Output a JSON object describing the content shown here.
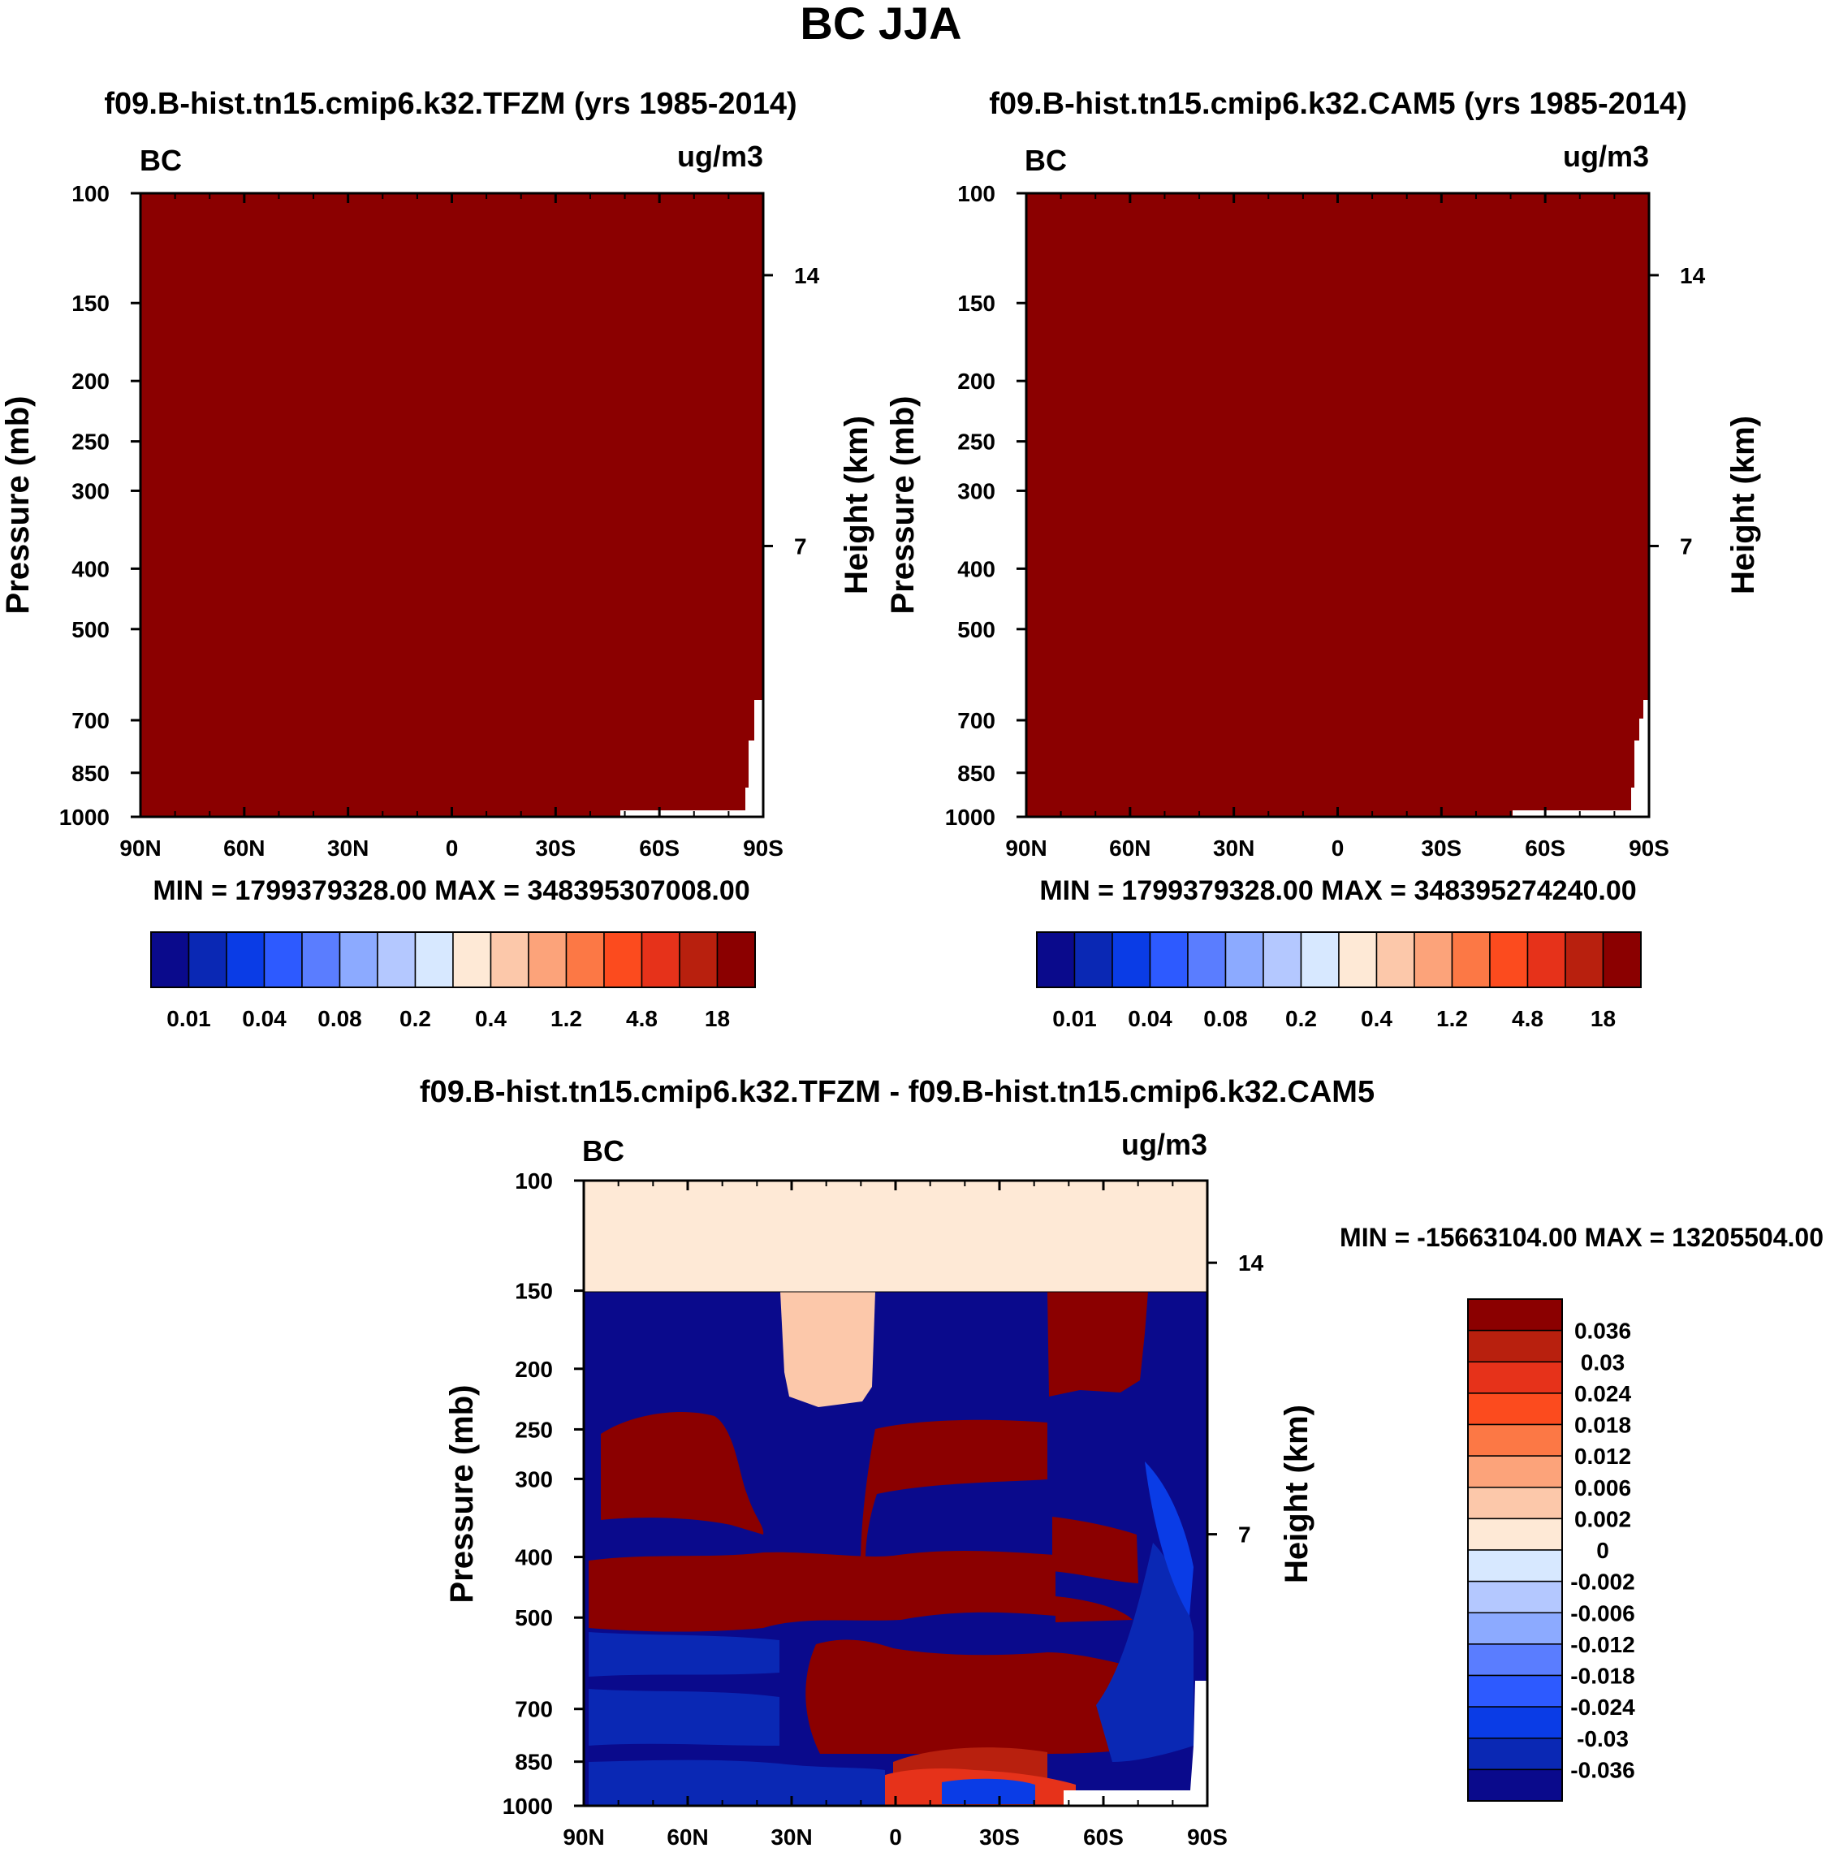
{
  "title": "BC JJA",
  "colors": {
    "seq_palette": [
      "#0a0a8c",
      "#0a28b4",
      "#0a3ce6",
      "#2d5aff",
      "#5a7dff",
      "#8caaff",
      "#b4c8ff",
      "#d7e8ff",
      "#fee9d6",
      "#fcc8aa",
      "#fca37a",
      "#fc7845",
      "#fc4b1e",
      "#e6321a",
      "#b8200e",
      "#8b0000"
    ],
    "diff_palette": [
      "#8b0000",
      "#b8200e",
      "#e6321a",
      "#fc4b1e",
      "#fc7845",
      "#fca37a",
      "#fcc8aa",
      "#fee9d6",
      "#d7e8ff",
      "#b4c8ff",
      "#8caaff",
      "#5a7dff",
      "#2d5aff",
      "#0a3ce6",
      "#0a28b4",
      "#0a0a8c"
    ]
  },
  "chart_data": [
    {
      "type": "heatmap",
      "title": "f09.B-hist.tn15.cmip6.k32.TFZM (yrs 1985-2014)",
      "left_label": "BC",
      "right_label": "ug/m3",
      "ylabel": "Pressure (mb)",
      "ylabel_right": "Height (km)",
      "x_ticks": [
        "90N",
        "60N",
        "30N",
        "0",
        "30S",
        "60S",
        "90S"
      ],
      "y_ticks": [
        "100",
        "150",
        "200",
        "250",
        "300",
        "400",
        "500",
        "700",
        "850",
        "1000"
      ],
      "height_ticks": [
        "14",
        "7"
      ],
      "stats": "MIN = 1799379328.00   MAX = 348395307008.00",
      "colorbar_labels": [
        "0.01",
        "0.04",
        "0.08",
        "0.2",
        "0.4",
        "1.2",
        "4.8",
        "18"
      ]
    },
    {
      "type": "heatmap",
      "title": "f09.B-hist.tn15.cmip6.k32.CAM5 (yrs 1985-2014)",
      "left_label": "BC",
      "right_label": "ug/m3",
      "ylabel": "Pressure (mb)",
      "ylabel_right": "Height (km)",
      "x_ticks": [
        "90N",
        "60N",
        "30N",
        "0",
        "30S",
        "60S",
        "90S"
      ],
      "y_ticks": [
        "100",
        "150",
        "200",
        "250",
        "300",
        "400",
        "500",
        "700",
        "850",
        "1000"
      ],
      "height_ticks": [
        "14",
        "7"
      ],
      "stats": "MIN = 1799379328.00   MAX = 348395274240.00",
      "colorbar_labels": [
        "0.01",
        "0.04",
        "0.08",
        "0.2",
        "0.4",
        "1.2",
        "4.8",
        "18"
      ]
    },
    {
      "type": "heatmap",
      "title": "f09.B-hist.tn15.cmip6.k32.TFZM - f09.B-hist.tn15.cmip6.k32.CAM5",
      "left_label": "BC",
      "right_label": "ug/m3",
      "ylabel": "Pressure (mb)",
      "ylabel_right": "Height (km)",
      "x_ticks": [
        "90N",
        "60N",
        "30N",
        "0",
        "30S",
        "60S",
        "90S"
      ],
      "y_ticks": [
        "100",
        "150",
        "200",
        "250",
        "300",
        "400",
        "500",
        "700",
        "850",
        "1000"
      ],
      "height_ticks": [
        "14",
        "7"
      ],
      "stats": "MIN = -15663104.00   MAX = 13205504.00",
      "colorbar_labels": [
        "0.036",
        "0.03",
        "0.024",
        "0.018",
        "0.012",
        "0.006",
        "0.002",
        "0",
        "-0.002",
        "-0.006",
        "-0.012",
        "-0.018",
        "-0.024",
        "-0.03",
        "-0.036"
      ]
    }
  ]
}
